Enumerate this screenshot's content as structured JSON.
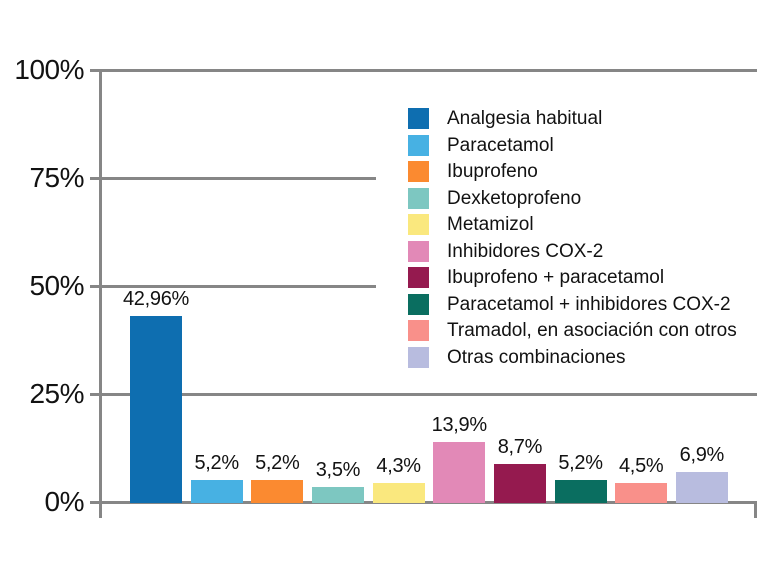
{
  "chart_data": {
    "type": "bar",
    "title": "",
    "xlabel": "",
    "ylabel": "",
    "ylim": [
      0,
      100
    ],
    "yticks": [
      0,
      25,
      50,
      75,
      100
    ],
    "ytick_labels": [
      "0%",
      "25%",
      "50%",
      "75%",
      "100%"
    ],
    "grid": true,
    "legend_position": "upper right",
    "categories": [
      "Analgesia habitual",
      "Paracetamol",
      "Ibuprofeno",
      "Dexketoprofeno",
      "Metamizol",
      "Inhibidores COX-2",
      "Ibuprofeno + paracetamol",
      "Paracetamol + inhibidores COX-2",
      "Tramadol, en asociación con otros",
      "Otras combinaciones"
    ],
    "values": [
      42.96,
      5.2,
      5.2,
      3.5,
      4.3,
      13.9,
      8.7,
      5.2,
      4.5,
      6.9
    ],
    "value_labels": [
      "42,96%",
      "5,2%",
      "5,2%",
      "3,5%",
      "4,3%",
      "13,9%",
      "8,7%",
      "5,2%",
      "4,5%",
      "6,9%"
    ],
    "colors": [
      "#0E6EB0",
      "#47B1E3",
      "#FB8A30",
      "#7DC7C1",
      "#FAE87E",
      "#E289B7",
      "#951A4F",
      "#0A6E60",
      "#F9908A",
      "#B8BCDF"
    ],
    "axis_color": "#868686",
    "text_color": "#121212"
  }
}
